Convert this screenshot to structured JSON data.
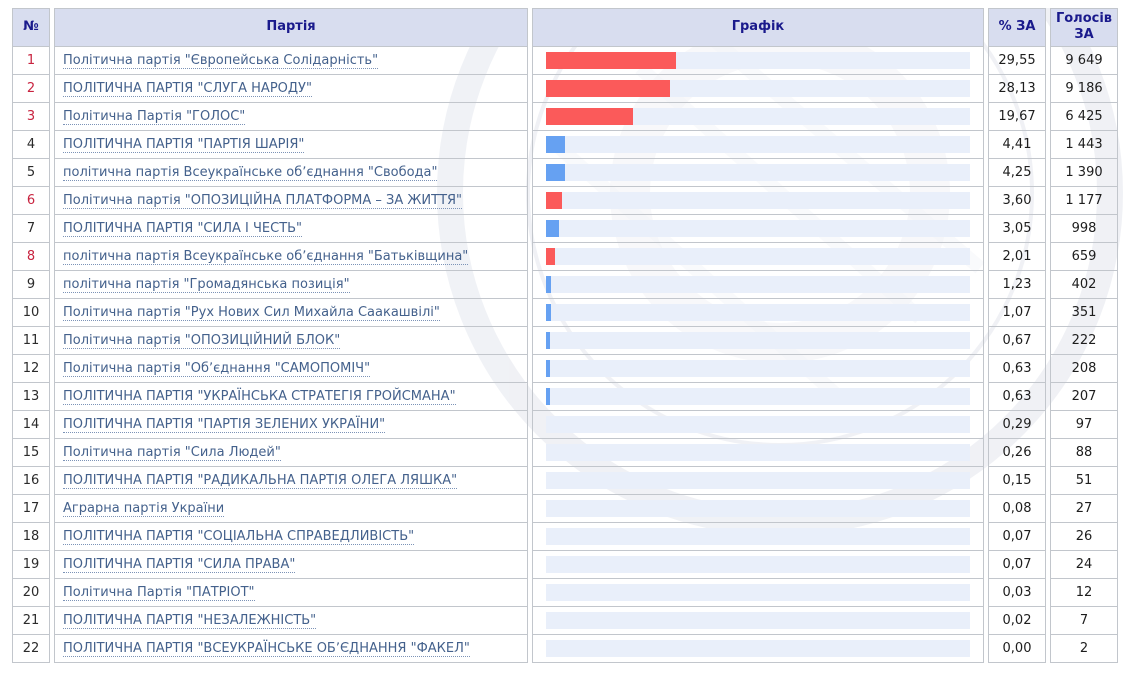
{
  "colors": {
    "header_bg": "#d8ddef",
    "header_text": "#1a1a8c",
    "border": "#c2c6cc",
    "link": "#44618c",
    "num_red": "#c8233f",
    "bar_red": "#fb5a5a",
    "bar_blue": "#66a1f2",
    "track": "#e9effa"
  },
  "table": {
    "headers": {
      "num": "№",
      "party": "Партія",
      "graph": "Графік",
      "percent": "% ЗА",
      "votes": "Голосів ЗА"
    },
    "rows": [
      {
        "num": "1",
        "red": true,
        "party": "Політична партія \"Європейська Солідарність\"",
        "percent": "29,55",
        "votes": "9 649",
        "bar": "red"
      },
      {
        "num": "2",
        "red": true,
        "party": "ПОЛІТИЧНА ПАРТІЯ \"СЛУГА НАРОДУ\"",
        "percent": "28,13",
        "votes": "9 186",
        "bar": "red"
      },
      {
        "num": "3",
        "red": true,
        "party": "Політична Партія \"ГОЛОС\"",
        "percent": "19,67",
        "votes": "6 425",
        "bar": "red"
      },
      {
        "num": "4",
        "red": false,
        "party": "ПОЛІТИЧНА ПАРТІЯ \"ПАРТІЯ ШАРІЯ\"",
        "percent": "4,41",
        "votes": "1 443",
        "bar": "blue"
      },
      {
        "num": "5",
        "red": false,
        "party": "політична партія Всеукраїнське обʼєднання \"Свобода\"",
        "percent": "4,25",
        "votes": "1 390",
        "bar": "blue"
      },
      {
        "num": "6",
        "red": true,
        "party": "Політична партія \"ОПОЗИЦІЙНА ПЛАТФОРМА – ЗА ЖИТТЯ\"",
        "percent": "3,60",
        "votes": "1 177",
        "bar": "red"
      },
      {
        "num": "7",
        "red": false,
        "party": "ПОЛІТИЧНА ПАРТІЯ \"СИЛА І ЧЕСТЬ\"",
        "percent": "3,05",
        "votes": "998",
        "bar": "blue"
      },
      {
        "num": "8",
        "red": true,
        "party": "політична партія Всеукраїнське обʼєднання \"Батьківщина\"",
        "percent": "2,01",
        "votes": "659",
        "bar": "red"
      },
      {
        "num": "9",
        "red": false,
        "party": "політична партія \"Громадянська позиція\"",
        "percent": "1,23",
        "votes": "402",
        "bar": "blue"
      },
      {
        "num": "10",
        "red": false,
        "party": "Політична партія \"Рух Нових Сил Михайла Саакашвілі\"",
        "percent": "1,07",
        "votes": "351",
        "bar": "blue"
      },
      {
        "num": "11",
        "red": false,
        "party": "Політична партія \"ОПОЗИЦІЙНИЙ БЛОК\"",
        "percent": "0,67",
        "votes": "222",
        "bar": "blue"
      },
      {
        "num": "12",
        "red": false,
        "party": "Політична партія \"Обʼєднання \"САМОПОМІЧ\"",
        "percent": "0,63",
        "votes": "208",
        "bar": "blue"
      },
      {
        "num": "13",
        "red": false,
        "party": "ПОЛІТИЧНА ПАРТІЯ \"УКРАЇНСЬКА СТРАТЕГІЯ ГРОЙСМАНА\"",
        "percent": "0,63",
        "votes": "207",
        "bar": "blue"
      },
      {
        "num": "14",
        "red": false,
        "party": "ПОЛІТИЧНА ПАРТІЯ \"ПАРТІЯ ЗЕЛЕНИХ УКРАЇНИ\"",
        "percent": "0,29",
        "votes": "97",
        "bar": "blue"
      },
      {
        "num": "15",
        "red": false,
        "party": "Політична партія \"Сила Людей\"",
        "percent": "0,26",
        "votes": "88",
        "bar": "blue"
      },
      {
        "num": "16",
        "red": false,
        "party": "ПОЛІТИЧНА ПАРТІЯ \"РАДИКАЛЬНА ПАРТІЯ ОЛЕГА ЛЯШКА\"",
        "percent": "0,15",
        "votes": "51",
        "bar": "blue"
      },
      {
        "num": "17",
        "red": false,
        "party": "Аграрна партія України",
        "percent": "0,08",
        "votes": "27",
        "bar": "blue"
      },
      {
        "num": "18",
        "red": false,
        "party": "ПОЛІТИЧНА ПАРТІЯ \"СОЦІАЛЬНА СПРАВЕДЛИВІСТЬ\"",
        "percent": "0,07",
        "votes": "26",
        "bar": "blue"
      },
      {
        "num": "19",
        "red": false,
        "party": "ПОЛІТИЧНА ПАРТІЯ \"СИЛА ПРАВА\"",
        "percent": "0,07",
        "votes": "24",
        "bar": "blue"
      },
      {
        "num": "20",
        "red": false,
        "party": "Політична Партія \"ПАТРІОТ\"",
        "percent": "0,03",
        "votes": "12",
        "bar": "blue"
      },
      {
        "num": "21",
        "red": false,
        "party": "ПОЛІТИЧНА ПАРТІЯ \"НЕЗАЛЕЖНІСТЬ\"",
        "percent": "0,02",
        "votes": "7",
        "bar": "blue"
      },
      {
        "num": "22",
        "red": false,
        "party": "ПОЛІТИЧНА ПАРТІЯ \"ВСЕУКРАЇНСЬКЕ ОБʼЄДНАННЯ \"ФАКЕЛ\"",
        "percent": "0,00",
        "votes": "2",
        "bar": "blue"
      }
    ]
  },
  "chart_data": {
    "type": "bar",
    "orientation": "horizontal",
    "title": "",
    "xlabel": "% ЗА",
    "ylabel": "Партія",
    "xlim": [
      0,
      100
    ],
    "categories": [
      "Політична партія \"Європейська Солідарність\"",
      "ПОЛІТИЧНА ПАРТІЯ \"СЛУГА НАРОДУ\"",
      "Політична Партія \"ГОЛОС\"",
      "ПОЛІТИЧНА ПАРТІЯ \"ПАРТІЯ ШАРІЯ\"",
      "політична партія Всеукраїнське обʼєднання \"Свобода\"",
      "Політична партія \"ОПОЗИЦІЙНА ПЛАТФОРМА – ЗА ЖИТТЯ\"",
      "ПОЛІТИЧНА ПАРТІЯ \"СИЛА І ЧЕСТЬ\"",
      "політична партія Всеукраїнське обʼєднання \"Батьківщина\"",
      "політична партія \"Громадянська позиція\"",
      "Політична партія \"Рух Нових Сил Михайла Саакашвілі\"",
      "Політична партія \"ОПОЗИЦІЙНИЙ БЛОК\"",
      "Політична партія \"Обʼєднання \"САМОПОМІЧ\"",
      "ПОЛІТИЧНА ПАРТІЯ \"УКРАЇНСЬКА СТРАТЕГІЯ ГРОЙСМАНА\"",
      "ПОЛІТИЧНА ПАРТІЯ \"ПАРТІЯ ЗЕЛЕНИХ УКРАЇНИ\"",
      "Політична партія \"Сила Людей\"",
      "ПОЛІТИЧНА ПАРТІЯ \"РАДИКАЛЬНА ПАРТІЯ ОЛЕГА ЛЯШКА\"",
      "Аграрна партія України",
      "ПОЛІТИЧНА ПАРТІЯ \"СОЦІАЛЬНА СПРАВЕДЛИВІСТЬ\"",
      "ПОЛІТИЧНА ПАРТІЯ \"СИЛА ПРАВА\"",
      "Політична Партія \"ПАТРІОТ\"",
      "ПОЛІТИЧНА ПАРТІЯ \"НЕЗАЛЕЖНІСТЬ\"",
      "ПОЛІТИЧНА ПАРТІЯ \"ВСЕУКРАЇНСЬКЕ ОБʼЄДНАННЯ \"ФАКЕЛ\""
    ],
    "series": [
      {
        "name": "% ЗА",
        "values": [
          29.55,
          28.13,
          19.67,
          4.41,
          4.25,
          3.6,
          3.05,
          2.01,
          1.23,
          1.07,
          0.67,
          0.63,
          0.63,
          0.29,
          0.26,
          0.15,
          0.08,
          0.07,
          0.07,
          0.03,
          0.02,
          0.0
        ]
      },
      {
        "name": "Голосів ЗА",
        "values": [
          9649,
          9186,
          6425,
          1443,
          1390,
          1177,
          998,
          659,
          402,
          351,
          222,
          208,
          207,
          97,
          88,
          51,
          27,
          26,
          24,
          12,
          7,
          2
        ]
      }
    ],
    "bar_colors": [
      "red",
      "red",
      "red",
      "blue",
      "blue",
      "red",
      "blue",
      "red",
      "blue",
      "blue",
      "blue",
      "blue",
      "blue",
      "blue",
      "blue",
      "blue",
      "blue",
      "blue",
      "blue",
      "blue",
      "blue",
      "blue"
    ],
    "legend": false,
    "grid": false
  }
}
